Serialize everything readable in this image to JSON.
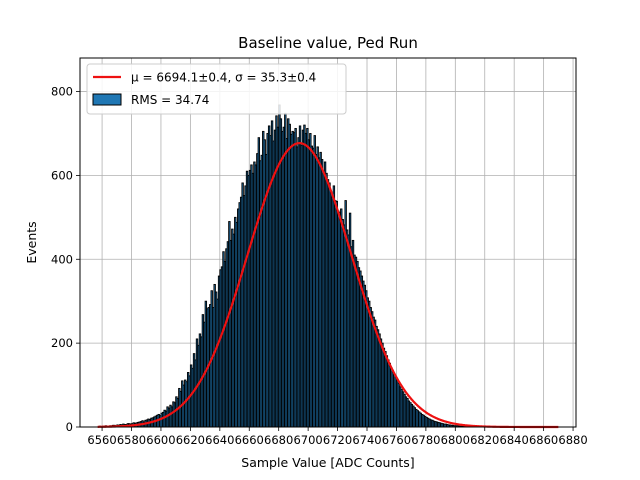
{
  "chart_data": {
    "type": "bar",
    "title": "Baseline value, Ped Run",
    "xlabel": "Sample Value [ADC Counts]",
    "ylabel": "Events",
    "xlim": [
      6545,
      6882
    ],
    "ylim": [
      0,
      880
    ],
    "xticks": [
      "6560",
      "6580",
      "6600",
      "6620",
      "6640",
      "6660",
      "6680",
      "6700",
      "6720",
      "6740",
      "6760",
      "6780",
      "6800",
      "6820",
      "6840",
      "6860",
      "6880"
    ],
    "yticks": [
      "0",
      "200",
      "400",
      "600",
      "800"
    ],
    "grid": true,
    "legend_placement": "top-left",
    "legend": [
      {
        "kind": "line",
        "label": "μ = 6694.1±0.4, σ = 35.3±0.4",
        "color": "#ee1111"
      },
      {
        "kind": "patch",
        "label": "RMS = 34.74",
        "color": "#1f77b4"
      }
    ],
    "series": [
      {
        "name": "RMS = 34.74",
        "kind": "histogram",
        "bin_width": 1,
        "bins": [
          [
            6558,
            2
          ],
          [
            6559,
            1
          ],
          [
            6560,
            2
          ],
          [
            6561,
            1
          ],
          [
            6562,
            3
          ],
          [
            6563,
            2
          ],
          [
            6564,
            2
          ],
          [
            6565,
            3
          ],
          [
            6566,
            3
          ],
          [
            6567,
            4
          ],
          [
            6568,
            4
          ],
          [
            6569,
            3
          ],
          [
            6570,
            5
          ],
          [
            6571,
            4
          ],
          [
            6572,
            6
          ],
          [
            6573,
            5
          ],
          [
            6574,
            7
          ],
          [
            6575,
            6
          ],
          [
            6576,
            6
          ],
          [
            6577,
            8
          ],
          [
            6578,
            8
          ],
          [
            6579,
            7
          ],
          [
            6580,
            8
          ],
          [
            6581,
            10
          ],
          [
            6582,
            9
          ],
          [
            6583,
            10
          ],
          [
            6584,
            11
          ],
          [
            6585,
            12
          ],
          [
            6586,
            13
          ],
          [
            6587,
            15
          ],
          [
            6588,
            12
          ],
          [
            6589,
            16
          ],
          [
            6590,
            17
          ],
          [
            6591,
            19
          ],
          [
            6592,
            18
          ],
          [
            6593,
            21
          ],
          [
            6594,
            22
          ],
          [
            6595,
            24
          ],
          [
            6596,
            26
          ],
          [
            6597,
            28
          ],
          [
            6598,
            30
          ],
          [
            6599,
            27
          ],
          [
            6600,
            33
          ],
          [
            6601,
            35
          ],
          [
            6602,
            40
          ],
          [
            6603,
            38
          ],
          [
            6604,
            48
          ],
          [
            6605,
            45
          ],
          [
            6606,
            52
          ],
          [
            6607,
            48
          ],
          [
            6608,
            60
          ],
          [
            6609,
            58
          ],
          [
            6610,
            72
          ],
          [
            6611,
            68
          ],
          [
            6612,
            92
          ],
          [
            6613,
            85
          ],
          [
            6614,
            110
          ],
          [
            6615,
            100
          ],
          [
            6616,
            112
          ],
          [
            6617,
            108
          ],
          [
            6618,
            130
          ],
          [
            6619,
            122
          ],
          [
            6620,
            148
          ],
          [
            6621,
            140
          ],
          [
            6622,
            175
          ],
          [
            6623,
            160
          ],
          [
            6624,
            210
          ],
          [
            6625,
            195
          ],
          [
            6626,
            222
          ],
          [
            6627,
            215
          ],
          [
            6628,
            268
          ],
          [
            6629,
            250
          ],
          [
            6630,
            300
          ],
          [
            6631,
            282
          ],
          [
            6632,
            285
          ],
          [
            6633,
            292
          ],
          [
            6634,
            325
          ],
          [
            6635,
            285
          ],
          [
            6636,
            340
          ],
          [
            6637,
            322
          ],
          [
            6638,
            305
          ],
          [
            6639,
            360
          ],
          [
            6640,
            375
          ],
          [
            6641,
            382
          ],
          [
            6642,
            418
          ],
          [
            6643,
            395
          ],
          [
            6644,
            425
          ],
          [
            6645,
            442
          ],
          [
            6646,
            490
          ],
          [
            6647,
            445
          ],
          [
            6648,
            472
          ],
          [
            6649,
            460
          ],
          [
            6650,
            500
          ],
          [
            6651,
            488
          ],
          [
            6652,
            520
          ],
          [
            6653,
            535
          ],
          [
            6654,
            548
          ],
          [
            6655,
            582
          ],
          [
            6656,
            552
          ],
          [
            6657,
            575
          ],
          [
            6658,
            610
          ],
          [
            6659,
            600
          ],
          [
            6660,
            612
          ],
          [
            6661,
            625
          ],
          [
            6662,
            605
          ],
          [
            6663,
            632
          ],
          [
            6664,
            625
          ],
          [
            6665,
            652
          ],
          [
            6666,
            690
          ],
          [
            6667,
            635
          ],
          [
            6668,
            648
          ],
          [
            6669,
            705
          ],
          [
            6670,
            685
          ],
          [
            6671,
            650
          ],
          [
            6672,
            700
          ],
          [
            6673,
            718
          ],
          [
            6674,
            695
          ],
          [
            6675,
            730
          ],
          [
            6676,
            682
          ],
          [
            6677,
            708
          ],
          [
            6678,
            742
          ],
          [
            6679,
            715
          ],
          [
            6680,
            768
          ],
          [
            6681,
            735
          ],
          [
            6682,
            705
          ],
          [
            6683,
            715
          ],
          [
            6684,
            748
          ],
          [
            6685,
            688
          ],
          [
            6686,
            735
          ],
          [
            6687,
            722
          ],
          [
            6688,
            698
          ],
          [
            6689,
            705
          ],
          [
            6690,
            702
          ],
          [
            6691,
            712
          ],
          [
            6692,
            668
          ],
          [
            6693,
            690
          ],
          [
            6694,
            718
          ],
          [
            6695,
            672
          ],
          [
            6696,
            708
          ],
          [
            6697,
            720
          ],
          [
            6698,
            700
          ],
          [
            6699,
            712
          ],
          [
            6700,
            685
          ],
          [
            6701,
            700
          ],
          [
            6702,
            670
          ],
          [
            6703,
            665
          ],
          [
            6704,
            695
          ],
          [
            6705,
            650
          ],
          [
            6706,
            668
          ],
          [
            6707,
            642
          ],
          [
            6708,
            655
          ],
          [
            6709,
            638
          ],
          [
            6710,
            610
          ],
          [
            6711,
            632
          ],
          [
            6712,
            605
          ],
          [
            6713,
            590
          ],
          [
            6714,
            582
          ],
          [
            6715,
            560
          ],
          [
            6716,
            548
          ],
          [
            6717,
            575
          ],
          [
            6718,
            540
          ],
          [
            6719,
            538
          ],
          [
            6720,
            515
          ],
          [
            6721,
            512
          ],
          [
            6722,
            520
          ],
          [
            6723,
            495
          ],
          [
            6724,
            482
          ],
          [
            6725,
            540
          ],
          [
            6726,
            470
          ],
          [
            6727,
            458
          ],
          [
            6728,
            510
          ],
          [
            6729,
            430
          ],
          [
            6730,
            445
          ],
          [
            6731,
            410
          ],
          [
            6732,
            405
          ],
          [
            6733,
            395
          ],
          [
            6734,
            380
          ],
          [
            6735,
            372
          ],
          [
            6736,
            360
          ],
          [
            6737,
            348
          ],
          [
            6738,
            338
          ],
          [
            6739,
            325
          ],
          [
            6740,
            308
          ],
          [
            6741,
            300
          ],
          [
            6742,
            285
          ],
          [
            6743,
            275
          ],
          [
            6744,
            262
          ],
          [
            6745,
            255
          ],
          [
            6746,
            240
          ],
          [
            6747,
            232
          ],
          [
            6748,
            222
          ],
          [
            6749,
            210
          ],
          [
            6750,
            200
          ],
          [
            6751,
            188
          ],
          [
            6752,
            180
          ],
          [
            6753,
            170
          ],
          [
            6754,
            160
          ],
          [
            6755,
            152
          ],
          [
            6756,
            142
          ],
          [
            6757,
            135
          ],
          [
            6758,
            125
          ],
          [
            6759,
            118
          ],
          [
            6760,
            110
          ],
          [
            6761,
            104
          ],
          [
            6762,
            96
          ],
          [
            6763,
            90
          ],
          [
            6764,
            84
          ],
          [
            6765,
            78
          ],
          [
            6766,
            72
          ],
          [
            6767,
            68
          ],
          [
            6768,
            62
          ],
          [
            6769,
            58
          ],
          [
            6770,
            54
          ],
          [
            6771,
            50
          ],
          [
            6772,
            46
          ],
          [
            6773,
            42
          ],
          [
            6774,
            39
          ],
          [
            6775,
            36
          ],
          [
            6776,
            33
          ],
          [
            6777,
            30
          ],
          [
            6778,
            28
          ],
          [
            6779,
            25
          ],
          [
            6780,
            23
          ],
          [
            6781,
            21
          ],
          [
            6782,
            19
          ],
          [
            6783,
            17
          ],
          [
            6784,
            16
          ],
          [
            6785,
            14
          ],
          [
            6786,
            13
          ],
          [
            6787,
            12
          ],
          [
            6788,
            11
          ],
          [
            6789,
            10
          ],
          [
            6790,
            9
          ],
          [
            6791,
            8
          ],
          [
            6792,
            7
          ],
          [
            6793,
            7
          ],
          [
            6794,
            6
          ],
          [
            6795,
            5
          ],
          [
            6796,
            5
          ],
          [
            6797,
            4
          ],
          [
            6798,
            4
          ],
          [
            6799,
            3
          ],
          [
            6800,
            3
          ],
          [
            6801,
            3
          ],
          [
            6802,
            2
          ],
          [
            6803,
            2
          ],
          [
            6804,
            2
          ],
          [
            6805,
            2
          ],
          [
            6806,
            1
          ],
          [
            6807,
            1
          ],
          [
            6808,
            1
          ],
          [
            6809,
            1
          ],
          [
            6810,
            1
          ]
        ],
        "color": "#1f77b4",
        "edgecolor": "#000000"
      },
      {
        "name": "μ = 6694.1±0.4, σ = 35.3±0.4",
        "kind": "gaussian_fit",
        "mu": 6694.1,
        "sigma": 35.3,
        "amplitude": 677,
        "x_range": [
          6557,
          6870
        ],
        "color": "#ee1111"
      }
    ]
  }
}
